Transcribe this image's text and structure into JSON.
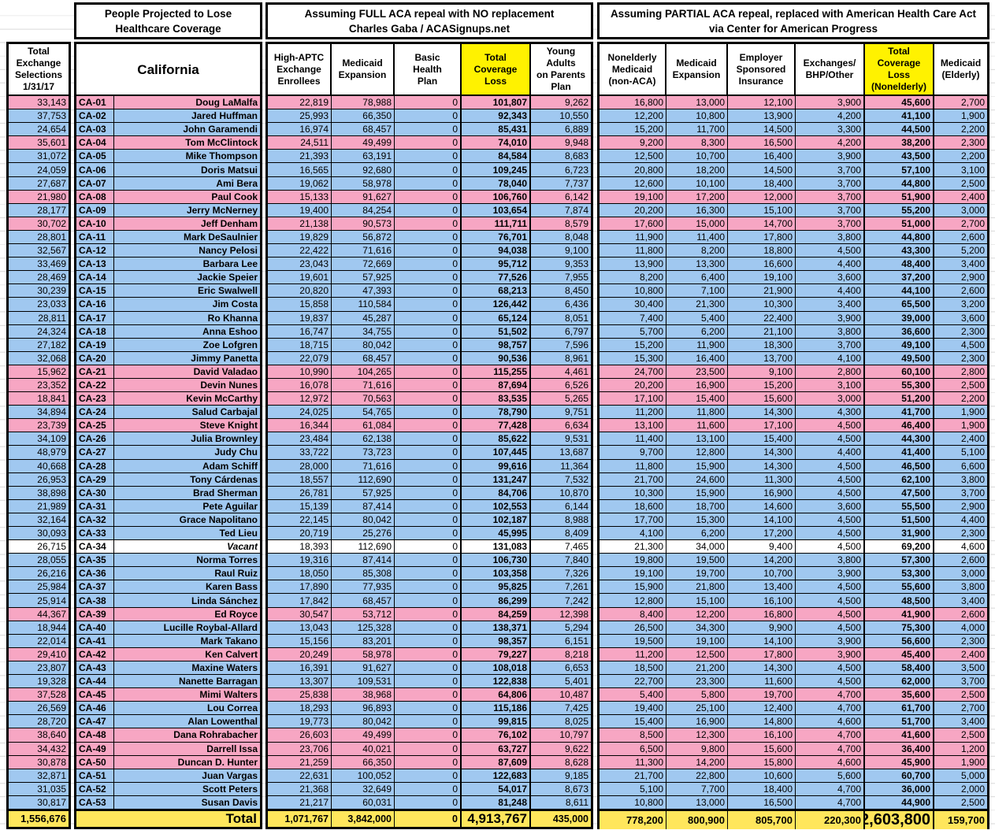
{
  "titles": {
    "section_people": "People Projected to Lose\nHealthcare Coverage",
    "section_full": "Assuming FULL ACA repeal with NO replacement\nCharles Gaba / ACASignups.net",
    "section_partial": "Assuming PARTIAL ACA repeal, replaced with American Health Care Act\nvia Center for American Progress"
  },
  "column_headers": {
    "exchange": "Total\nExchange\nSelections\n1/31/17",
    "state": "California",
    "c1": "High-APTC\nExchange\nEnrollees",
    "c2": "Medicaid\nExpansion",
    "c3": "Basic\nHealth\nPlan",
    "c4": "Total\nCoverage\nLoss",
    "c5": "Young\nAdults\non Parents\nPlan",
    "d1": "Nonelderly\nMedicaid\n(non-ACA)",
    "d2": "Medicaid\nExpansion",
    "d3": "Employer\nSponsored\nInsurance",
    "d4": "Exchanges/\nBHP/Other",
    "d5": "Total\nCoverage\nLoss\n(Nonelderly)",
    "d6": "Medicaid\n(Elderly)"
  },
  "colors": {
    "row_republican": "#F7A6C3",
    "row_democrat": "#A0C8F0",
    "row_vacant": "#FFFFFF",
    "highlight": "#FFF200",
    "total_row": "#FFE65C"
  },
  "rows": [
    {
      "p": "R",
      "a": "33,143",
      "dist": "CA-01",
      "name": "Doug LaMalfa",
      "c": [
        "22,819",
        "78,988",
        "0",
        "101,807",
        "9,262"
      ],
      "d": [
        "16,800",
        "13,000",
        "12,100",
        "3,900",
        "45,600",
        "2,700"
      ]
    },
    {
      "p": "D",
      "a": "37,753",
      "dist": "CA-02",
      "name": "Jared Huffman",
      "c": [
        "25,993",
        "66,350",
        "0",
        "92,343",
        "10,550"
      ],
      "d": [
        "12,200",
        "10,800",
        "13,900",
        "4,200",
        "41,100",
        "1,900"
      ]
    },
    {
      "p": "D",
      "a": "24,654",
      "dist": "CA-03",
      "name": "John Garamendi",
      "c": [
        "16,974",
        "68,457",
        "0",
        "85,431",
        "6,889"
      ],
      "d": [
        "15,200",
        "11,700",
        "14,500",
        "3,300",
        "44,500",
        "2,200"
      ]
    },
    {
      "p": "R",
      "a": "35,601",
      "dist": "CA-04",
      "name": "Tom McClintock",
      "c": [
        "24,511",
        "49,499",
        "0",
        "74,010",
        "9,948"
      ],
      "d": [
        "9,200",
        "8,300",
        "16,500",
        "4,200",
        "38,200",
        "2,300"
      ]
    },
    {
      "p": "D",
      "a": "31,072",
      "dist": "CA-05",
      "name": "Mike Thompson",
      "c": [
        "21,393",
        "63,191",
        "0",
        "84,584",
        "8,683"
      ],
      "d": [
        "12,500",
        "10,700",
        "16,400",
        "3,900",
        "43,500",
        "2,200"
      ]
    },
    {
      "p": "D",
      "a": "24,059",
      "dist": "CA-06",
      "name": "Doris Matsui",
      "c": [
        "16,565",
        "92,680",
        "0",
        "109,245",
        "6,723"
      ],
      "d": [
        "20,800",
        "18,200",
        "14,500",
        "3,700",
        "57,100",
        "3,100"
      ]
    },
    {
      "p": "D",
      "a": "27,687",
      "dist": "CA-07",
      "name": "Ami Bera",
      "c": [
        "19,062",
        "58,978",
        "0",
        "78,040",
        "7,737"
      ],
      "d": [
        "12,600",
        "10,100",
        "18,400",
        "3,700",
        "44,800",
        "2,500"
      ]
    },
    {
      "p": "R",
      "a": "21,980",
      "dist": "CA-08",
      "name": "Paul Cook",
      "c": [
        "15,133",
        "91,627",
        "0",
        "106,760",
        "6,142"
      ],
      "d": [
        "19,100",
        "17,200",
        "12,000",
        "3,700",
        "51,900",
        "2,400"
      ]
    },
    {
      "p": "D",
      "a": "28,177",
      "dist": "CA-09",
      "name": "Jerry McNerney",
      "c": [
        "19,400",
        "84,254",
        "0",
        "103,654",
        "7,874"
      ],
      "d": [
        "20,200",
        "16,300",
        "15,100",
        "3,700",
        "55,200",
        "3,000"
      ]
    },
    {
      "p": "R",
      "a": "30,702",
      "dist": "CA-10",
      "name": "Jeff Denham",
      "c": [
        "21,138",
        "90,573",
        "0",
        "111,711",
        "8,579"
      ],
      "d": [
        "17,600",
        "15,000",
        "14,700",
        "3,700",
        "51,000",
        "2,700"
      ]
    },
    {
      "p": "D",
      "a": "28,801",
      "dist": "CA-11",
      "name": "Mark DeSaulnier",
      "c": [
        "19,829",
        "56,872",
        "0",
        "76,701",
        "8,048"
      ],
      "d": [
        "11,900",
        "11,400",
        "17,800",
        "3,800",
        "44,800",
        "2,600"
      ]
    },
    {
      "p": "D",
      "a": "32,567",
      "dist": "CA-12",
      "name": "Nancy Pelosi",
      "c": [
        "22,422",
        "71,616",
        "0",
        "94,038",
        "9,100"
      ],
      "d": [
        "11,800",
        "8,200",
        "18,800",
        "4,500",
        "43,300",
        "5,200"
      ]
    },
    {
      "p": "D",
      "a": "33,469",
      "dist": "CA-13",
      "name": "Barbara Lee",
      "c": [
        "23,043",
        "72,669",
        "0",
        "95,712",
        "9,353"
      ],
      "d": [
        "13,900",
        "13,300",
        "16,600",
        "4,400",
        "48,400",
        "3,400"
      ]
    },
    {
      "p": "D",
      "a": "28,469",
      "dist": "CA-14",
      "name": "Jackie Speier",
      "c": [
        "19,601",
        "57,925",
        "0",
        "77,526",
        "7,955"
      ],
      "d": [
        "8,200",
        "6,400",
        "19,100",
        "3,600",
        "37,200",
        "2,900"
      ]
    },
    {
      "p": "D",
      "a": "30,239",
      "dist": "CA-15",
      "name": "Eric Swalwell",
      "c": [
        "20,820",
        "47,393",
        "0",
        "68,213",
        "8,450"
      ],
      "d": [
        "10,800",
        "7,100",
        "21,900",
        "4,400",
        "44,100",
        "2,600"
      ]
    },
    {
      "p": "D",
      "a": "23,033",
      "dist": "CA-16",
      "name": "Jim Costa",
      "c": [
        "15,858",
        "110,584",
        "0",
        "126,442",
        "6,436"
      ],
      "d": [
        "30,400",
        "21,300",
        "10,300",
        "3,400",
        "65,500",
        "3,200"
      ]
    },
    {
      "p": "D",
      "a": "28,811",
      "dist": "CA-17",
      "name": "Ro Khanna",
      "c": [
        "19,837",
        "45,287",
        "0",
        "65,124",
        "8,051"
      ],
      "d": [
        "7,400",
        "5,400",
        "22,400",
        "3,900",
        "39,000",
        "3,600"
      ]
    },
    {
      "p": "D",
      "a": "24,324",
      "dist": "CA-18",
      "name": "Anna Eshoo",
      "c": [
        "16,747",
        "34,755",
        "0",
        "51,502",
        "6,797"
      ],
      "d": [
        "5,700",
        "6,200",
        "21,100",
        "3,800",
        "36,600",
        "2,300"
      ]
    },
    {
      "p": "D",
      "a": "27,182",
      "dist": "CA-19",
      "name": "Zoe Lofgren",
      "c": [
        "18,715",
        "80,042",
        "0",
        "98,757",
        "7,596"
      ],
      "d": [
        "15,200",
        "11,900",
        "18,300",
        "3,700",
        "49,100",
        "4,500"
      ]
    },
    {
      "p": "D",
      "a": "32,068",
      "dist": "CA-20",
      "name": "Jimmy Panetta",
      "c": [
        "22,079",
        "68,457",
        "0",
        "90,536",
        "8,961"
      ],
      "d": [
        "15,300",
        "16,400",
        "13,700",
        "4,100",
        "49,500",
        "2,300"
      ]
    },
    {
      "p": "R",
      "a": "15,962",
      "dist": "CA-21",
      "name": "David Valadao",
      "c": [
        "10,990",
        "104,265",
        "0",
        "115,255",
        "4,461"
      ],
      "d": [
        "24,700",
        "23,500",
        "9,100",
        "2,800",
        "60,100",
        "2,800"
      ]
    },
    {
      "p": "R",
      "a": "23,352",
      "dist": "CA-22",
      "name": "Devin Nunes",
      "c": [
        "16,078",
        "71,616",
        "0",
        "87,694",
        "6,526"
      ],
      "d": [
        "20,200",
        "16,900",
        "15,200",
        "3,100",
        "55,300",
        "2,500"
      ]
    },
    {
      "p": "R",
      "a": "18,841",
      "dist": "CA-23",
      "name": "Kevin McCarthy",
      "c": [
        "12,972",
        "70,563",
        "0",
        "83,535",
        "5,265"
      ],
      "d": [
        "17,100",
        "15,400",
        "15,600",
        "3,000",
        "51,200",
        "2,200"
      ]
    },
    {
      "p": "D",
      "a": "34,894",
      "dist": "CA-24",
      "name": "Salud Carbajal",
      "c": [
        "24,025",
        "54,765",
        "0",
        "78,790",
        "9,751"
      ],
      "d": [
        "11,200",
        "11,800",
        "14,300",
        "4,300",
        "41,700",
        "1,900"
      ]
    },
    {
      "p": "R",
      "a": "23,739",
      "dist": "CA-25",
      "name": "Steve Knight",
      "c": [
        "16,344",
        "61,084",
        "0",
        "77,428",
        "6,634"
      ],
      "d": [
        "13,100",
        "11,600",
        "17,100",
        "4,500",
        "46,400",
        "1,900"
      ]
    },
    {
      "p": "D",
      "a": "34,109",
      "dist": "CA-26",
      "name": "Julia Brownley",
      "c": [
        "23,484",
        "62,138",
        "0",
        "85,622",
        "9,531"
      ],
      "d": [
        "11,400",
        "13,100",
        "15,400",
        "4,500",
        "44,300",
        "2,400"
      ]
    },
    {
      "p": "D",
      "a": "48,979",
      "dist": "CA-27",
      "name": "Judy Chu",
      "c": [
        "33,722",
        "73,723",
        "0",
        "107,445",
        "13,687"
      ],
      "d": [
        "9,700",
        "12,800",
        "14,300",
        "4,400",
        "41,400",
        "5,100"
      ]
    },
    {
      "p": "D",
      "a": "40,668",
      "dist": "CA-28",
      "name": "Adam Schiff",
      "c": [
        "28,000",
        "71,616",
        "0",
        "99,616",
        "11,364"
      ],
      "d": [
        "11,800",
        "15,900",
        "14,300",
        "4,500",
        "46,500",
        "6,600"
      ]
    },
    {
      "p": "D",
      "a": "26,953",
      "dist": "CA-29",
      "name": "Tony Cárdenas",
      "c": [
        "18,557",
        "112,690",
        "0",
        "131,247",
        "7,532"
      ],
      "d": [
        "21,700",
        "24,600",
        "11,300",
        "4,500",
        "62,100",
        "3,800"
      ]
    },
    {
      "p": "D",
      "a": "38,898",
      "dist": "CA-30",
      "name": "Brad Sherman",
      "c": [
        "26,781",
        "57,925",
        "0",
        "84,706",
        "10,870"
      ],
      "d": [
        "10,300",
        "15,900",
        "16,900",
        "4,500",
        "47,500",
        "3,700"
      ]
    },
    {
      "p": "D",
      "a": "21,989",
      "dist": "CA-31",
      "name": "Pete Aguilar",
      "c": [
        "15,139",
        "87,414",
        "0",
        "102,553",
        "6,144"
      ],
      "d": [
        "18,600",
        "18,700",
        "14,600",
        "3,600",
        "55,500",
        "2,900"
      ]
    },
    {
      "p": "D",
      "a": "32,164",
      "dist": "CA-32",
      "name": "Grace Napolitano",
      "c": [
        "22,145",
        "80,042",
        "0",
        "102,187",
        "8,988"
      ],
      "d": [
        "17,700",
        "15,300",
        "14,100",
        "4,500",
        "51,500",
        "4,400"
      ]
    },
    {
      "p": "D",
      "a": "30,093",
      "dist": "CA-33",
      "name": "Ted Lieu",
      "c": [
        "20,719",
        "25,276",
        "0",
        "45,995",
        "8,409"
      ],
      "d": [
        "4,100",
        "6,200",
        "17,200",
        "4,500",
        "31,900",
        "2,300"
      ]
    },
    {
      "p": "V",
      "a": "26,715",
      "dist": "CA-34",
      "name": "Vacant",
      "c": [
        "18,393",
        "112,690",
        "0",
        "131,083",
        "7,465"
      ],
      "d": [
        "21,300",
        "34,000",
        "9,400",
        "4,500",
        "69,200",
        "4,600"
      ]
    },
    {
      "p": "D",
      "a": "28,055",
      "dist": "CA-35",
      "name": "Norma Torres",
      "c": [
        "19,316",
        "87,414",
        "0",
        "106,730",
        "7,840"
      ],
      "d": [
        "19,800",
        "19,500",
        "14,200",
        "3,800",
        "57,300",
        "2,600"
      ]
    },
    {
      "p": "D",
      "a": "26,216",
      "dist": "CA-36",
      "name": "Raul Ruiz",
      "c": [
        "18,050",
        "85,308",
        "0",
        "103,358",
        "7,326"
      ],
      "d": [
        "19,100",
        "19,700",
        "10,700",
        "3,900",
        "53,300",
        "3,000"
      ]
    },
    {
      "p": "D",
      "a": "25,984",
      "dist": "CA-37",
      "name": "Karen Bass",
      "c": [
        "17,890",
        "77,935",
        "0",
        "95,825",
        "7,261"
      ],
      "d": [
        "15,900",
        "21,800",
        "13,400",
        "4,500",
        "55,600",
        "3,800"
      ]
    },
    {
      "p": "D",
      "a": "25,914",
      "dist": "CA-38",
      "name": "Linda Sánchez",
      "c": [
        "17,842",
        "68,457",
        "0",
        "86,299",
        "7,242"
      ],
      "d": [
        "12,800",
        "15,100",
        "16,100",
        "4,500",
        "48,500",
        "3,400"
      ]
    },
    {
      "p": "R",
      "a": "44,367",
      "dist": "CA-39",
      "name": "Ed Royce",
      "c": [
        "30,547",
        "53,712",
        "0",
        "84,259",
        "12,398"
      ],
      "d": [
        "8,400",
        "12,200",
        "16,800",
        "4,500",
        "41,900",
        "2,600"
      ]
    },
    {
      "p": "D",
      "a": "18,944",
      "dist": "CA-40",
      "name": "Lucille Roybal-Allard",
      "c": [
        "13,043",
        "125,328",
        "0",
        "138,371",
        "5,294"
      ],
      "d": [
        "26,500",
        "34,300",
        "9,900",
        "4,500",
        "75,300",
        "4,000"
      ]
    },
    {
      "p": "D",
      "a": "22,014",
      "dist": "CA-41",
      "name": "Mark Takano",
      "c": [
        "15,156",
        "83,201",
        "0",
        "98,357",
        "6,151"
      ],
      "d": [
        "19,500",
        "19,100",
        "14,100",
        "3,900",
        "56,600",
        "2,300"
      ]
    },
    {
      "p": "R",
      "a": "29,410",
      "dist": "CA-42",
      "name": "Ken Calvert",
      "c": [
        "20,249",
        "58,978",
        "0",
        "79,227",
        "8,218"
      ],
      "d": [
        "11,200",
        "12,500",
        "17,800",
        "3,900",
        "45,400",
        "2,400"
      ]
    },
    {
      "p": "D",
      "a": "23,807",
      "dist": "CA-43",
      "name": "Maxine Waters",
      "c": [
        "16,391",
        "91,627",
        "0",
        "108,018",
        "6,653"
      ],
      "d": [
        "18,500",
        "21,200",
        "14,300",
        "4,500",
        "58,400",
        "3,500"
      ]
    },
    {
      "p": "D",
      "a": "19,328",
      "dist": "CA-44",
      "name": "Nanette Barragan",
      "c": [
        "13,307",
        "109,531",
        "0",
        "122,838",
        "5,401"
      ],
      "d": [
        "22,700",
        "23,300",
        "11,600",
        "4,500",
        "62,000",
        "3,700"
      ]
    },
    {
      "p": "R",
      "a": "37,528",
      "dist": "CA-45",
      "name": "Mimi Walters",
      "c": [
        "25,838",
        "38,968",
        "0",
        "64,806",
        "10,487"
      ],
      "d": [
        "5,400",
        "5,800",
        "19,700",
        "4,700",
        "35,600",
        "2,500"
      ]
    },
    {
      "p": "D",
      "a": "26,569",
      "dist": "CA-46",
      "name": "Lou Correa",
      "c": [
        "18,293",
        "96,893",
        "0",
        "115,186",
        "7,425"
      ],
      "d": [
        "19,400",
        "25,100",
        "12,400",
        "4,700",
        "61,700",
        "2,700"
      ]
    },
    {
      "p": "D",
      "a": "28,720",
      "dist": "CA-47",
      "name": "Alan Lowenthal",
      "c": [
        "19,773",
        "80,042",
        "0",
        "99,815",
        "8,025"
      ],
      "d": [
        "15,400",
        "16,900",
        "14,800",
        "4,600",
        "51,700",
        "3,400"
      ]
    },
    {
      "p": "R",
      "a": "38,640",
      "dist": "CA-48",
      "name": "Dana Rohrabacher",
      "c": [
        "26,603",
        "49,499",
        "0",
        "76,102",
        "10,797"
      ],
      "d": [
        "8,500",
        "12,300",
        "16,100",
        "4,700",
        "41,600",
        "2,500"
      ]
    },
    {
      "p": "R",
      "a": "34,432",
      "dist": "CA-49",
      "name": "Darrell Issa",
      "c": [
        "23,706",
        "40,021",
        "0",
        "63,727",
        "9,622"
      ],
      "d": [
        "6,500",
        "9,800",
        "15,600",
        "4,700",
        "36,400",
        "1,200"
      ]
    },
    {
      "p": "R",
      "a": "30,878",
      "dist": "CA-50",
      "name": "Duncan D. Hunter",
      "c": [
        "21,259",
        "66,350",
        "0",
        "87,609",
        "8,628"
      ],
      "d": [
        "11,300",
        "14,200",
        "15,800",
        "4,600",
        "45,900",
        "1,900"
      ]
    },
    {
      "p": "D",
      "a": "32,871",
      "dist": "CA-51",
      "name": "Juan Vargas",
      "c": [
        "22,631",
        "100,052",
        "0",
        "122,683",
        "9,185"
      ],
      "d": [
        "21,700",
        "22,800",
        "10,600",
        "5,600",
        "60,700",
        "5,000"
      ]
    },
    {
      "p": "D",
      "a": "31,035",
      "dist": "CA-52",
      "name": "Scott Peters",
      "c": [
        "21,368",
        "32,649",
        "0",
        "54,017",
        "8,673"
      ],
      "d": [
        "5,100",
        "7,700",
        "18,400",
        "4,700",
        "36,000",
        "2,000"
      ]
    },
    {
      "p": "D",
      "a": "30,817",
      "dist": "CA-53",
      "name": "Susan Davis",
      "c": [
        "21,217",
        "60,031",
        "0",
        "81,248",
        "8,611"
      ],
      "d": [
        "10,800",
        "13,000",
        "16,500",
        "4,700",
        "44,900",
        "2,500"
      ]
    }
  ],
  "total": {
    "a": "1,556,676",
    "label": "Total",
    "c": [
      "1,071,767",
      "3,842,000",
      "0",
      "4,913,767",
      "435,000"
    ],
    "d": [
      "778,200",
      "800,900",
      "805,700",
      "220,300",
      "2,603,800",
      "159,700"
    ]
  }
}
